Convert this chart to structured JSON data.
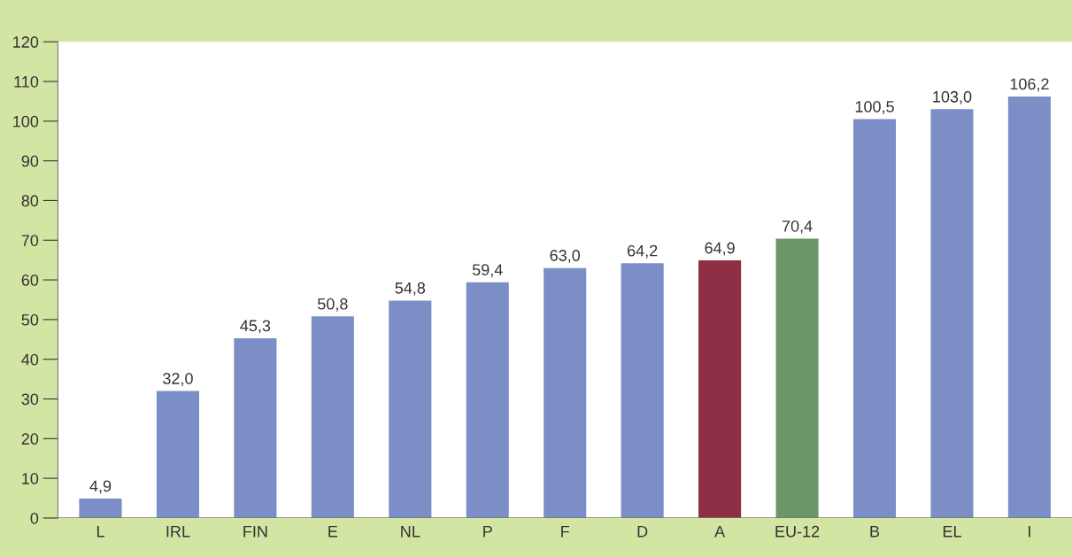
{
  "chart_data": {
    "type": "bar",
    "categories": [
      "L",
      "IRL",
      "FIN",
      "E",
      "NL",
      "P",
      "F",
      "D",
      "A",
      "EU-12",
      "B",
      "EL",
      "I"
    ],
    "values": [
      4.9,
      32.0,
      45.3,
      50.8,
      54.8,
      59.4,
      63.0,
      64.2,
      64.9,
      70.4,
      100.5,
      103.0,
      106.2
    ],
    "colors": [
      "#7b8fc6",
      "#7b8fc6",
      "#7b8fc6",
      "#7b8fc6",
      "#7b8fc6",
      "#7b8fc6",
      "#7b8fc6",
      "#7b8fc6",
      "#8e2f45",
      "#6b9667",
      "#7b8fc6",
      "#7b8fc6",
      "#7b8fc6"
    ],
    "value_labels": [
      "4,9",
      "32,0",
      "45,3",
      "50,8",
      "54,8",
      "59,4",
      "63,0",
      "64,2",
      "64,9",
      "70,4",
      "100,5",
      "103,0",
      "106,2"
    ],
    "ylim": [
      0,
      120
    ],
    "yticks": [
      0,
      10,
      20,
      30,
      40,
      50,
      60,
      70,
      80,
      90,
      100,
      110,
      120
    ],
    "grid": false
  }
}
